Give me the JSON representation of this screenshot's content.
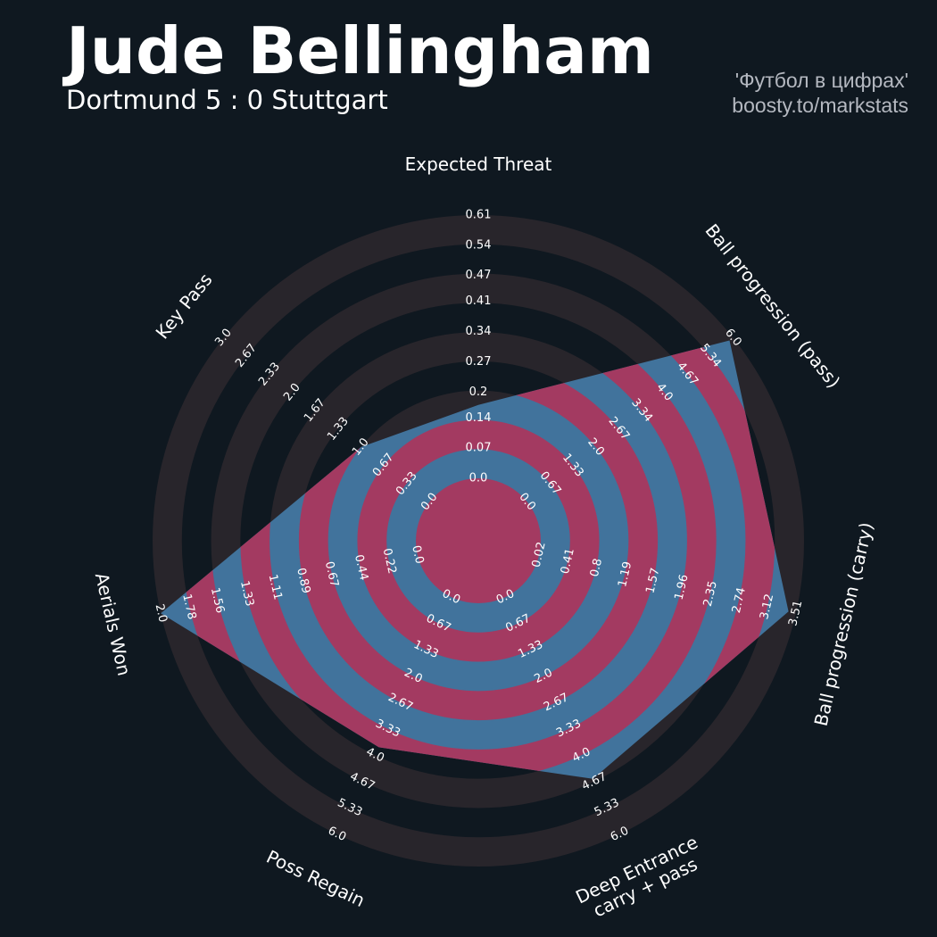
{
  "chart_data": {
    "type": "radar",
    "title": "Jude Bellingham",
    "subtitle": "Dortmund 5 : 0 Stuttgart",
    "credits": [
      "'Футбол в цифрах'",
      "boosty.to/markstats"
    ],
    "categories": [
      "Expected Threat",
      "Ball progression (pass)",
      "Ball progression (carry)",
      "Deep Entrance\ncarry + pass",
      "Poss Regain",
      "Aerials Won",
      "Key Pass"
    ],
    "values": [
      0.17,
      5.9,
      3.41,
      4.6,
      3.8,
      2,
      1
    ],
    "axes": [
      {
        "lim": [
          0,
          0.61
        ],
        "ticks": [
          {
            "value": 0,
            "label": "0.0"
          },
          0.07,
          0.14,
          0.2,
          0.27,
          0.34,
          0.41,
          0.47,
          0.54,
          0.61
        ]
      },
      {
        "lim": [
          0,
          6
        ],
        "ticks": [
          {
            "value": 0,
            "label": "0.0"
          },
          0.67,
          1.33,
          {
            "value": 2,
            "label": "2.0"
          },
          2.67,
          3.34,
          {
            "value": 4,
            "label": "4.0"
          },
          4.67,
          5.34,
          {
            "value": 6,
            "label": "6.0"
          }
        ]
      },
      {
        "lim": [
          0.02,
          3.51
        ],
        "ticks": [
          0.02,
          0.41,
          0.8,
          1.19,
          1.57,
          1.96,
          2.35,
          2.74,
          3.12,
          3.51
        ]
      },
      {
        "lim": [
          0,
          6
        ],
        "ticks": [
          {
            "value": 0,
            "label": "0.0"
          },
          0.67,
          1.33,
          {
            "value": 2,
            "label": "2.0"
          },
          2.67,
          3.33,
          {
            "value": 4,
            "label": "4.0"
          },
          4.67,
          5.33,
          {
            "value": 6,
            "label": "6.0"
          }
        ]
      },
      {
        "lim": [
          0,
          6
        ],
        "ticks": [
          {
            "value": 0,
            "label": "0.0"
          },
          0.67,
          1.33,
          {
            "value": 2,
            "label": "2.0"
          },
          2.67,
          3.33,
          {
            "value": 4,
            "label": "4.0"
          },
          4.67,
          5.33,
          {
            "value": 6,
            "label": "6.0"
          }
        ]
      },
      {
        "lim": [
          0,
          2
        ],
        "ticks": [
          {
            "value": 0,
            "label": "0.0"
          },
          0.22,
          0.44,
          0.67,
          0.89,
          1.11,
          1.33,
          1.56,
          1.78,
          {
            "value": 2,
            "label": "2.0"
          }
        ]
      },
      {
        "lim": [
          0,
          3
        ],
        "ticks": [
          {
            "value": 0,
            "label": "0.0"
          },
          0.33,
          0.67,
          {
            "value": 1,
            "label": "1.0"
          },
          1.33,
          1.67,
          {
            "value": 2,
            "label": "2.0"
          },
          2.33,
          2.67,
          {
            "value": 3,
            "label": "3.0"
          }
        ]
      }
    ],
    "colors": {
      "ring": "#28252b",
      "inside_a": "#41739c",
      "inside_b": "#a33a61"
    }
  }
}
